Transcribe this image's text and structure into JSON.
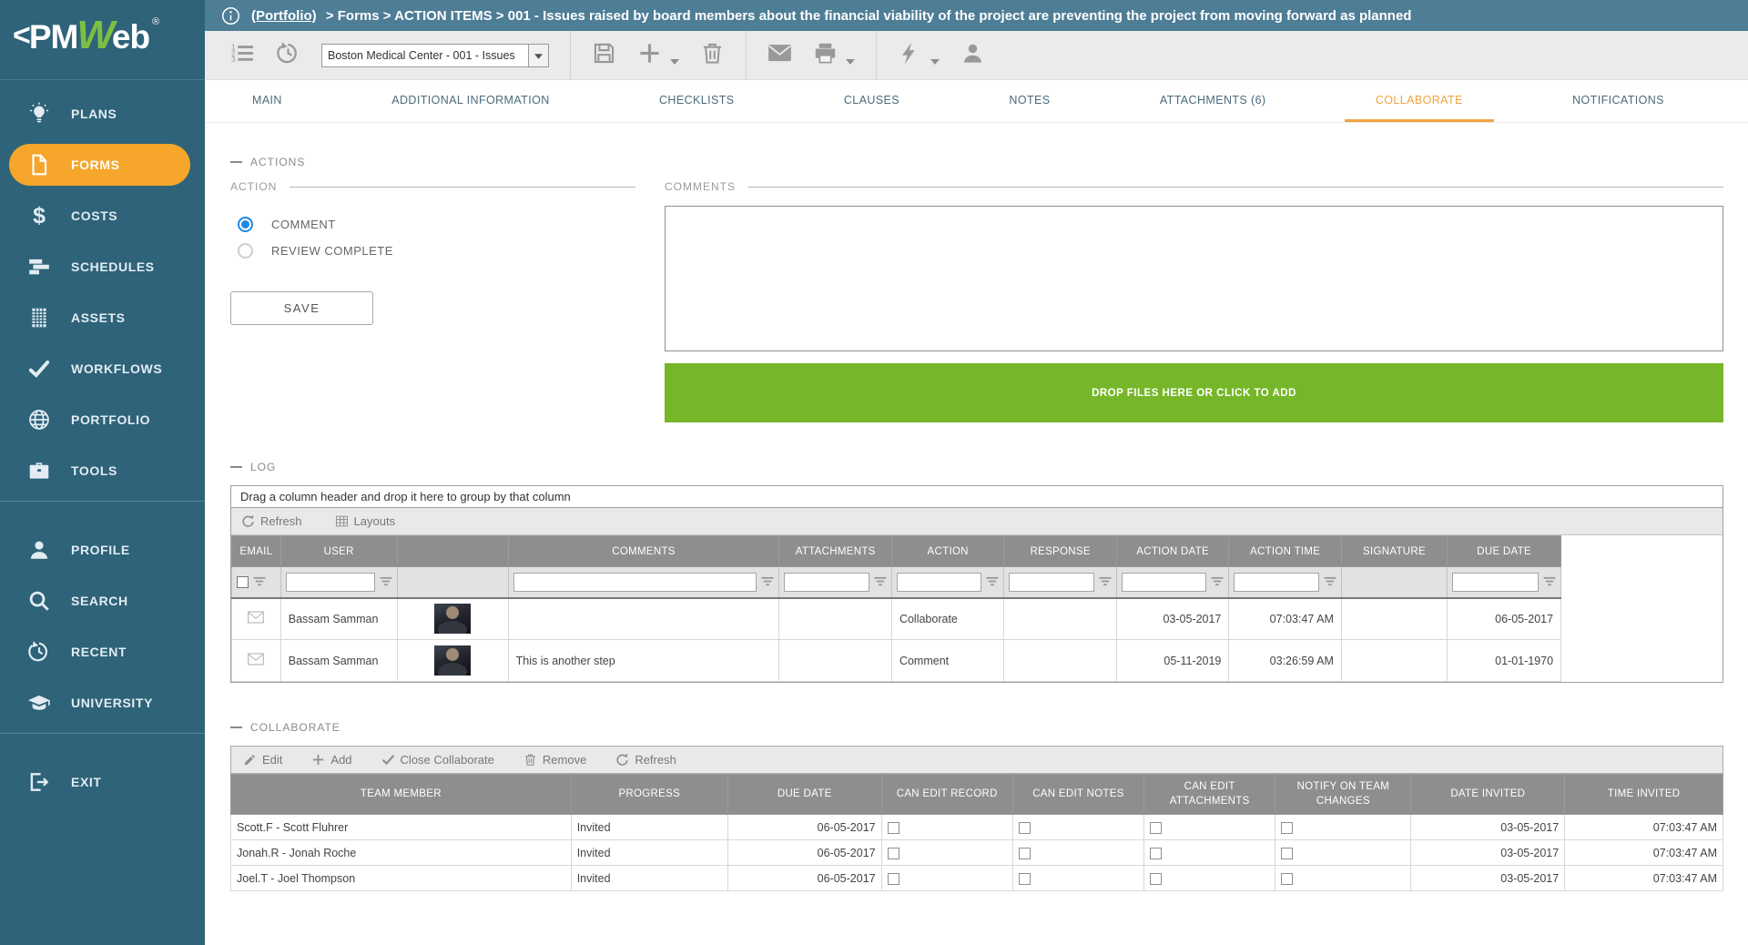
{
  "logo": {
    "chevron": "<",
    "pm": "PM",
    "w": "W",
    "eb": "eb",
    "reg": "®"
  },
  "header": {
    "breadcrumb_link": "(Portfolio)",
    "breadcrumb_rest": "> Forms > ACTION ITEMS > 001 - Issues raised by board members about the financial viability of the project are preventing the project from moving forward as planned"
  },
  "toolbar": {
    "record_selector_value": "Boston Medical Center - 001 - Issues",
    "items": [
      {
        "type": "icon",
        "icon": "numbered-list-icon",
        "name": "view-list-button"
      },
      {
        "type": "icon",
        "icon": "history-icon",
        "name": "history-button"
      },
      {
        "type": "select",
        "name": "record-selector"
      },
      {
        "type": "sep"
      },
      {
        "type": "icon",
        "icon": "floppy-icon",
        "name": "save-button"
      },
      {
        "type": "icon",
        "icon": "plus-icon",
        "name": "add-button",
        "caret": true
      },
      {
        "type": "icon",
        "icon": "trash-icon",
        "name": "delete-button"
      },
      {
        "type": "sep"
      },
      {
        "type": "icon",
        "icon": "envelope-icon",
        "name": "email-button"
      },
      {
        "type": "icon",
        "icon": "printer-icon",
        "name": "print-button",
        "caret": true
      },
      {
        "type": "sep"
      },
      {
        "type": "icon",
        "icon": "lightning-icon",
        "name": "workflow-action-button",
        "caret": true
      },
      {
        "type": "icon",
        "icon": "person-icon",
        "name": "user-button"
      }
    ]
  },
  "tabs": [
    {
      "label": "MAIN",
      "active": false
    },
    {
      "label": "ADDITIONAL INFORMATION",
      "active": false
    },
    {
      "label": "CHECKLISTS",
      "active": false
    },
    {
      "label": "CLAUSES",
      "active": false
    },
    {
      "label": "NOTES",
      "active": false
    },
    {
      "label": "ATTACHMENTS (6)",
      "active": false
    },
    {
      "label": "COLLABORATE",
      "active": true
    },
    {
      "label": "NOTIFICATIONS",
      "active": false
    }
  ],
  "sidebar": {
    "sections": [
      {
        "items": [
          {
            "label": "PLANS",
            "icon": "lightbulb-icon",
            "active": false
          },
          {
            "label": "FORMS",
            "icon": "document-icon",
            "active": true
          },
          {
            "label": "COSTS",
            "icon": "dollar-icon",
            "active": false
          },
          {
            "label": "SCHEDULES",
            "icon": "bars-icon",
            "active": false
          },
          {
            "label": "ASSETS",
            "icon": "building-icon",
            "active": false
          },
          {
            "label": "WORKFLOWS",
            "icon": "check-icon",
            "active": false
          },
          {
            "label": "PORTFOLIO",
            "icon": "globe-icon",
            "active": false
          },
          {
            "label": "TOOLS",
            "icon": "briefcase-icon",
            "active": false
          }
        ]
      },
      {
        "items": [
          {
            "label": "PROFILE",
            "icon": "person-icon",
            "active": false
          },
          {
            "label": "SEARCH",
            "icon": "search-icon",
            "active": false
          },
          {
            "label": "RECENT",
            "icon": "history-icon",
            "active": false
          },
          {
            "label": "UNIVERSITY",
            "icon": "graduation-icon",
            "active": false
          }
        ]
      },
      {
        "items": [
          {
            "label": "EXIT",
            "icon": "exit-icon",
            "active": false
          }
        ]
      }
    ]
  },
  "actions": {
    "section_title": "ACTIONS",
    "fieldset_label": "ACTION",
    "options": [
      {
        "label": "COMMENT",
        "selected": true
      },
      {
        "label": "REVIEW COMPLETE",
        "selected": false
      }
    ],
    "save_label": "SAVE"
  },
  "comments": {
    "fieldset_label": "COMMENTS",
    "value": "",
    "dropzone_label": "DROP FILES HERE OR CLICK TO ADD"
  },
  "log": {
    "section_title": "LOG",
    "group_hint": "Drag a column header and drop it here to group by that column",
    "refresh_label": "Refresh",
    "layouts_label": "Layouts",
    "columns": [
      "EMAIL",
      "USER",
      "",
      "COMMENTS",
      "ATTACHMENTS",
      "ACTION",
      "RESPONSE",
      "ACTION DATE",
      "ACTION TIME",
      "SIGNATURE",
      "DUE DATE"
    ],
    "filters": [
      "checkbox",
      "input",
      "none",
      "input",
      "input",
      "input",
      "input",
      "input",
      "input",
      "none",
      "input"
    ],
    "rows": [
      {
        "user": "Bassam Samman",
        "comments": "",
        "attachments": "",
        "action": "Collaborate",
        "response": "",
        "action_date": "03-05-2017",
        "action_time": "07:03:47 AM",
        "signature": "",
        "due_date": "06-05-2017"
      },
      {
        "user": "Bassam Samman",
        "comments": "This is another step",
        "attachments": "",
        "action": "Comment",
        "response": "",
        "action_date": "05-11-2019",
        "action_time": "03:26:59 AM",
        "signature": "",
        "due_date": "01-01-1970"
      }
    ]
  },
  "collaborate": {
    "section_title": "COLLABORATE",
    "toolbar": [
      {
        "label": "Edit",
        "icon": "pencil-icon",
        "name": "edit-button"
      },
      {
        "label": "Add",
        "icon": "plus-icon",
        "name": "add-button"
      },
      {
        "label": "Close Collaborate",
        "icon": "check-icon",
        "name": "close-collaborate-button"
      },
      {
        "label": "Remove",
        "icon": "trash-icon",
        "name": "remove-button"
      },
      {
        "label": "Refresh",
        "icon": "refresh-icon",
        "name": "refresh-button"
      }
    ],
    "columns": [
      "TEAM MEMBER",
      "PROGRESS",
      "DUE DATE",
      "CAN EDIT RECORD",
      "CAN EDIT NOTES",
      "CAN EDIT ATTACHMENTS",
      "NOTIFY ON TEAM CHANGES",
      "DATE INVITED",
      "TIME INVITED"
    ],
    "rows": [
      {
        "team_member": "Scott.F - Scott Fluhrer",
        "progress": "Invited",
        "due_date": "06-05-2017",
        "can_edit_record": false,
        "can_edit_notes": false,
        "can_edit_attachments": false,
        "notify_on_team_changes": false,
        "date_invited": "03-05-2017",
        "time_invited": "07:03:47 AM"
      },
      {
        "team_member": "Jonah.R - Jonah Roche",
        "progress": "Invited",
        "due_date": "06-05-2017",
        "can_edit_record": false,
        "can_edit_notes": false,
        "can_edit_attachments": false,
        "notify_on_team_changes": false,
        "date_invited": "03-05-2017",
        "time_invited": "07:03:47 AM"
      },
      {
        "team_member": "Joel.T - Joel Thompson",
        "progress": "Invited",
        "due_date": "06-05-2017",
        "can_edit_record": false,
        "can_edit_notes": false,
        "can_edit_attachments": false,
        "notify_on_team_changes": false,
        "date_invited": "03-05-2017",
        "time_invited": "07:03:47 AM"
      }
    ]
  },
  "colors": {
    "sidebar_teal": "#2E6379",
    "topbar_blue": "#4E7D96",
    "accent_orange": "#F5A62B",
    "tab_active_orange": "#F0A43F",
    "dropzone_green": "#76B72A",
    "grid_header_gray": "#8E8E8E",
    "radio_blue": "#1E88E5"
  }
}
